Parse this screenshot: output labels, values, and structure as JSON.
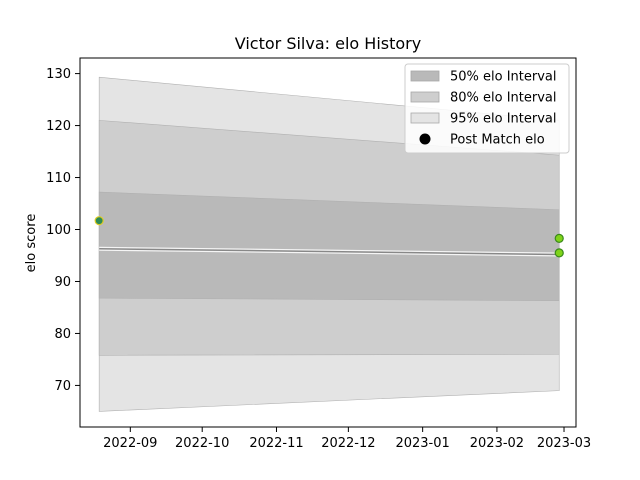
{
  "chart_data": {
    "type": "area",
    "title": "Victor Silva: elo History",
    "xlabel": "",
    "ylabel": "elo score",
    "x_ticks": [
      "2022-09",
      "2022-10",
      "2022-11",
      "2022-12",
      "2023-01",
      "2023-02",
      "2023-03"
    ],
    "y_ticks": [
      70,
      80,
      90,
      100,
      110,
      120,
      130
    ],
    "xlim": [
      "2022-08-11",
      "2023-03-06"
    ],
    "ylim": [
      62,
      133
    ],
    "grid": false,
    "legend_position": "top-right",
    "bands": [
      {
        "name": "95% elo Interval",
        "color": "#e4e4e4",
        "x": [
          "2022-08-19",
          "2023-02-27"
        ],
        "lower": [
          65.0,
          69.0
        ],
        "upper": [
          129.3,
          121.0
        ]
      },
      {
        "name": "80% elo Interval",
        "color": "#cecece",
        "x": [
          "2022-08-19",
          "2023-02-27"
        ],
        "lower": [
          75.8,
          76.0
        ],
        "upper": [
          121.0,
          114.3
        ]
      },
      {
        "name": "50% elo Interval",
        "color": "#b9b9b9",
        "x": [
          "2022-08-19",
          "2023-02-27"
        ],
        "lower": [
          86.8,
          86.3
        ],
        "upper": [
          107.2,
          103.8
        ]
      }
    ],
    "mean_line": {
      "x": [
        "2022-08-19",
        "2023-02-27"
      ],
      "y": [
        96.3,
        95.2
      ],
      "color": "#888888"
    },
    "points": {
      "name": "Post Match elo",
      "x": [
        "2022-08-19",
        "2023-02-27",
        "2023-02-27"
      ],
      "y": [
        101.7,
        98.3,
        95.5
      ],
      "colors": [
        "#2e8b57",
        "#7fd31a",
        "#7fd31a"
      ],
      "edge_colors": [
        "#ddcc22",
        "#3a8a1a",
        "#3a8a1a"
      ]
    }
  }
}
